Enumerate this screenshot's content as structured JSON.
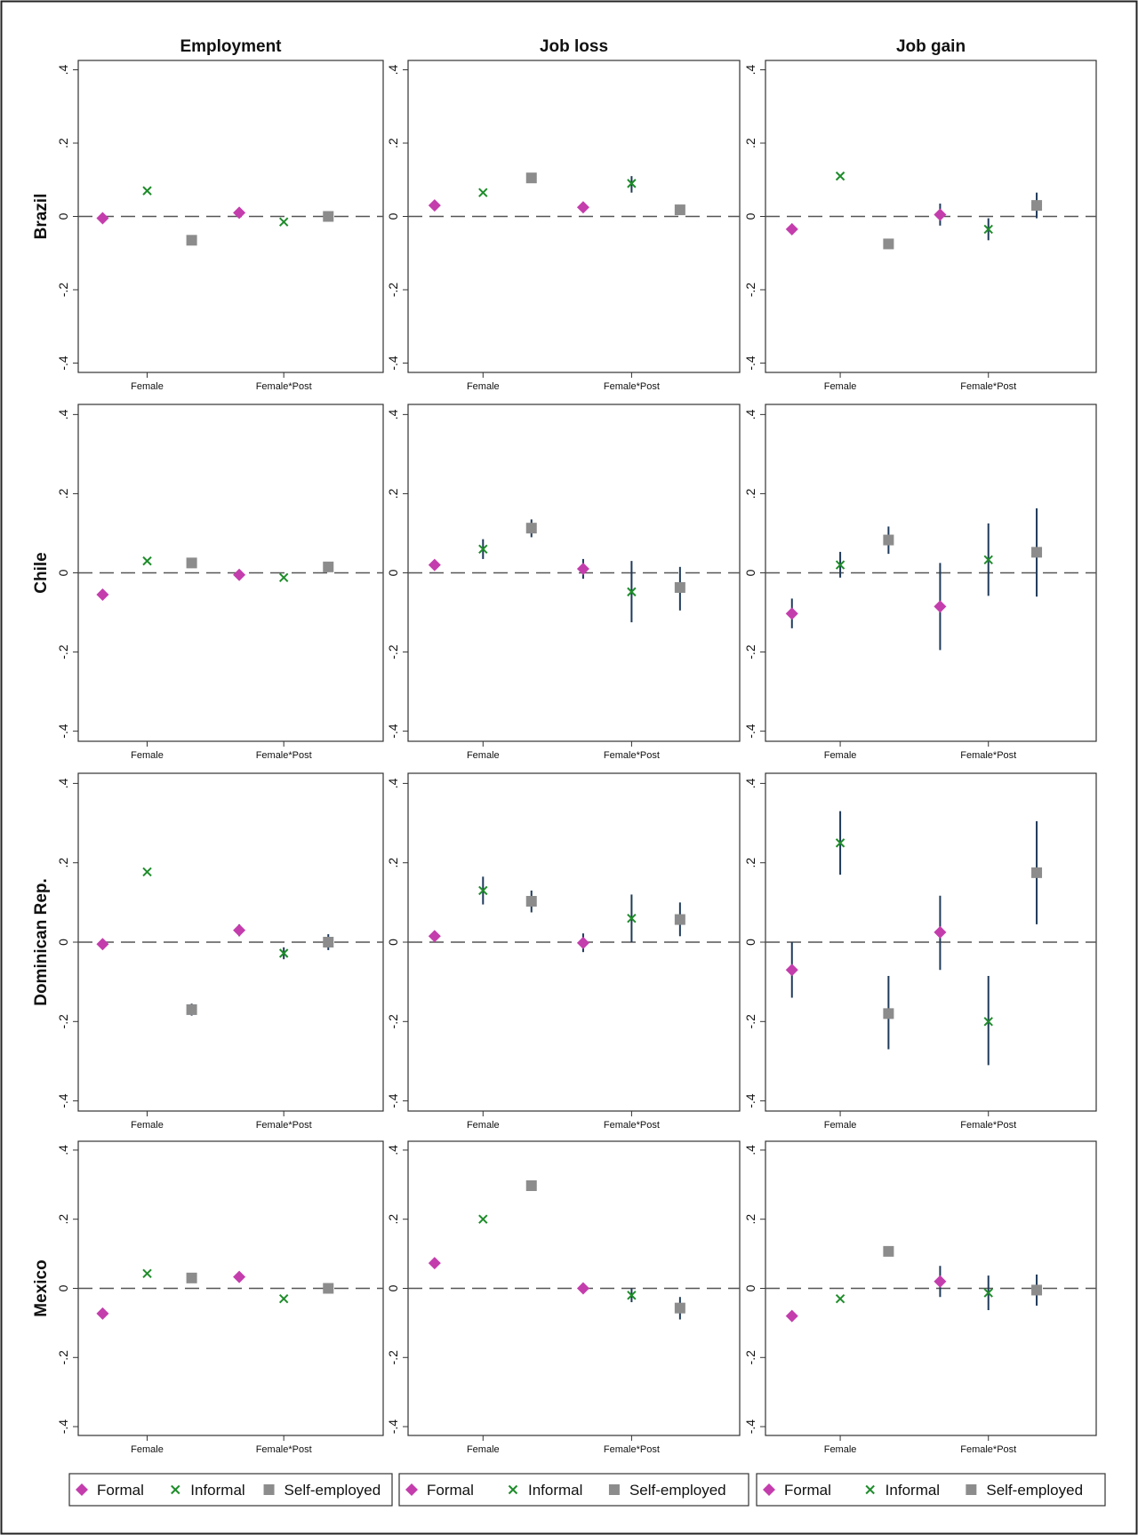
{
  "chart_data": {
    "type": "scatter",
    "subtype": "coefficient plot with confidence intervals",
    "columns": [
      "Employment",
      "Job loss",
      "Job gain"
    ],
    "rows": [
      "Brazil",
      "Chile",
      "Dominican Rep.",
      "Mexico"
    ],
    "x_categories": [
      "Female",
      "Female*Post"
    ],
    "y_ticks": [
      ".4",
      ".2",
      "0",
      "-.2",
      "-.4"
    ],
    "ylim": [
      -0.4,
      0.4
    ],
    "reference_line": 0,
    "legend": {
      "placement": "bottom",
      "items": [
        {
          "label": "Formal",
          "marker": "diamond",
          "color": "#c43dad"
        },
        {
          "label": "Informal",
          "marker": "x",
          "color": "#1e8c2a"
        },
        {
          "label": "Self-employed",
          "marker": "square",
          "color": "#8c8c8c"
        }
      ]
    },
    "ci_color": "#1f3a5a",
    "panels": [
      {
        "row": "Brazil",
        "column": "Employment",
        "series": [
          {
            "name": "Formal",
            "values": [
              {
                "x": "Female",
                "y": -0.005,
                "lo": -0.01,
                "hi": 0.0
              },
              {
                "x": "Female*Post",
                "y": 0.01,
                "lo": 0.0,
                "hi": 0.02
              }
            ]
          },
          {
            "name": "Informal",
            "values": [
              {
                "x": "Female",
                "y": 0.07,
                "lo": 0.065,
                "hi": 0.075
              },
              {
                "x": "Female*Post",
                "y": -0.015,
                "lo": -0.02,
                "hi": -0.01
              }
            ]
          },
          {
            "name": "Self-employed",
            "values": [
              {
                "x": "Female",
                "y": -0.065,
                "lo": -0.07,
                "hi": -0.06
              },
              {
                "x": "Female*Post",
                "y": 0.0,
                "lo": -0.01,
                "hi": 0.01
              }
            ]
          }
        ]
      },
      {
        "row": "Brazil",
        "column": "Job loss",
        "series": [
          {
            "name": "Formal",
            "values": [
              {
                "x": "Female",
                "y": 0.03,
                "lo": 0.025,
                "hi": 0.035
              },
              {
                "x": "Female*Post",
                "y": 0.025,
                "lo": 0.015,
                "hi": 0.035
              }
            ]
          },
          {
            "name": "Informal",
            "values": [
              {
                "x": "Female",
                "y": 0.065,
                "lo": 0.055,
                "hi": 0.075
              },
              {
                "x": "Female*Post",
                "y": 0.09,
                "lo": 0.065,
                "hi": 0.11
              }
            ]
          },
          {
            "name": "Self-employed",
            "values": [
              {
                "x": "Female",
                "y": 0.105,
                "lo": 0.1,
                "hi": 0.11
              },
              {
                "x": "Female*Post",
                "y": 0.018,
                "lo": 0.005,
                "hi": 0.03
              }
            ]
          }
        ]
      },
      {
        "row": "Brazil",
        "column": "Job gain",
        "series": [
          {
            "name": "Formal",
            "values": [
              {
                "x": "Female",
                "y": -0.035,
                "lo": -0.04,
                "hi": -0.03
              },
              {
                "x": "Female*Post",
                "y": 0.005,
                "lo": -0.025,
                "hi": 0.035
              }
            ]
          },
          {
            "name": "Informal",
            "values": [
              {
                "x": "Female",
                "y": 0.11,
                "lo": 0.1,
                "hi": 0.12
              },
              {
                "x": "Female*Post",
                "y": -0.035,
                "lo": -0.065,
                "hi": -0.005
              }
            ]
          },
          {
            "name": "Self-employed",
            "values": [
              {
                "x": "Female",
                "y": -0.075,
                "lo": -0.08,
                "hi": -0.07
              },
              {
                "x": "Female*Post",
                "y": 0.03,
                "lo": -0.005,
                "hi": 0.065
              }
            ]
          }
        ]
      },
      {
        "row": "Chile",
        "column": "Employment",
        "series": [
          {
            "name": "Formal",
            "values": [
              {
                "x": "Female",
                "y": -0.055,
                "lo": -0.06,
                "hi": -0.05
              },
              {
                "x": "Female*Post",
                "y": -0.005,
                "lo": -0.01,
                "hi": 0.0
              }
            ]
          },
          {
            "name": "Informal",
            "values": [
              {
                "x": "Female",
                "y": 0.03,
                "lo": 0.025,
                "hi": 0.035
              },
              {
                "x": "Female*Post",
                "y": -0.012,
                "lo": -0.017,
                "hi": -0.007
              }
            ]
          },
          {
            "name": "Self-employed",
            "values": [
              {
                "x": "Female",
                "y": 0.025,
                "lo": 0.02,
                "hi": 0.03
              },
              {
                "x": "Female*Post",
                "y": 0.015,
                "lo": 0.005,
                "hi": 0.025
              }
            ]
          }
        ]
      },
      {
        "row": "Chile",
        "column": "Job loss",
        "series": [
          {
            "name": "Formal",
            "values": [
              {
                "x": "Female",
                "y": 0.02,
                "lo": 0.01,
                "hi": 0.03
              },
              {
                "x": "Female*Post",
                "y": 0.01,
                "lo": -0.015,
                "hi": 0.035
              }
            ]
          },
          {
            "name": "Informal",
            "values": [
              {
                "x": "Female",
                "y": 0.06,
                "lo": 0.035,
                "hi": 0.085
              },
              {
                "x": "Female*Post",
                "y": -0.048,
                "lo": -0.125,
                "hi": 0.03
              }
            ]
          },
          {
            "name": "Self-employed",
            "values": [
              {
                "x": "Female",
                "y": 0.113,
                "lo": 0.09,
                "hi": 0.135
              },
              {
                "x": "Female*Post",
                "y": -0.037,
                "lo": -0.095,
                "hi": 0.015
              }
            ]
          }
        ]
      },
      {
        "row": "Chile",
        "column": "Job gain",
        "series": [
          {
            "name": "Formal",
            "values": [
              {
                "x": "Female",
                "y": -0.103,
                "lo": -0.14,
                "hi": -0.065
              },
              {
                "x": "Female*Post",
                "y": -0.085,
                "lo": -0.195,
                "hi": 0.025
              }
            ]
          },
          {
            "name": "Informal",
            "values": [
              {
                "x": "Female",
                "y": 0.02,
                "lo": -0.012,
                "hi": 0.053
              },
              {
                "x": "Female*Post",
                "y": 0.033,
                "lo": -0.058,
                "hi": 0.125
              }
            ]
          },
          {
            "name": "Self-employed",
            "values": [
              {
                "x": "Female",
                "y": 0.083,
                "lo": 0.048,
                "hi": 0.117
              },
              {
                "x": "Female*Post",
                "y": 0.052,
                "lo": -0.06,
                "hi": 0.163
              }
            ]
          }
        ]
      },
      {
        "row": "Dominican Rep.",
        "column": "Employment",
        "series": [
          {
            "name": "Formal",
            "values": [
              {
                "x": "Female",
                "y": -0.005,
                "lo": -0.015,
                "hi": 0.005
              },
              {
                "x": "Female*Post",
                "y": 0.03,
                "lo": 0.015,
                "hi": 0.045
              }
            ]
          },
          {
            "name": "Informal",
            "values": [
              {
                "x": "Female",
                "y": 0.177,
                "lo": 0.167,
                "hi": 0.187
              },
              {
                "x": "Female*Post",
                "y": -0.028,
                "lo": -0.043,
                "hi": -0.013
              }
            ]
          },
          {
            "name": "Self-employed",
            "values": [
              {
                "x": "Female",
                "y": -0.17,
                "lo": -0.185,
                "hi": -0.155
              },
              {
                "x": "Female*Post",
                "y": 0.0,
                "lo": -0.02,
                "hi": 0.02
              }
            ]
          }
        ]
      },
      {
        "row": "Dominican Rep.",
        "column": "Job loss",
        "series": [
          {
            "name": "Formal",
            "values": [
              {
                "x": "Female",
                "y": 0.015,
                "lo": 0.005,
                "hi": 0.025
              },
              {
                "x": "Female*Post",
                "y": -0.002,
                "lo": -0.025,
                "hi": 0.022
              }
            ]
          },
          {
            "name": "Informal",
            "values": [
              {
                "x": "Female",
                "y": 0.13,
                "lo": 0.095,
                "hi": 0.165
              },
              {
                "x": "Female*Post",
                "y": 0.06,
                "lo": 0.0,
                "hi": 0.12
              }
            ]
          },
          {
            "name": "Self-employed",
            "values": [
              {
                "x": "Female",
                "y": 0.103,
                "lo": 0.075,
                "hi": 0.13
              },
              {
                "x": "Female*Post",
                "y": 0.057,
                "lo": 0.015,
                "hi": 0.1
              }
            ]
          }
        ]
      },
      {
        "row": "Dominican Rep.",
        "column": "Job gain",
        "series": [
          {
            "name": "Formal",
            "values": [
              {
                "x": "Female",
                "y": -0.07,
                "lo": -0.14,
                "hi": 0.0
              },
              {
                "x": "Female*Post",
                "y": 0.025,
                "lo": -0.07,
                "hi": 0.117
              }
            ]
          },
          {
            "name": "Informal",
            "values": [
              {
                "x": "Female",
                "y": 0.25,
                "lo": 0.17,
                "hi": 0.33
              },
              {
                "x": "Female*Post",
                "y": -0.2,
                "lo": -0.31,
                "hi": -0.085
              }
            ]
          },
          {
            "name": "Self-employed",
            "values": [
              {
                "x": "Female",
                "y": -0.18,
                "lo": -0.27,
                "hi": -0.085
              },
              {
                "x": "Female*Post",
                "y": 0.175,
                "lo": 0.045,
                "hi": 0.305
              }
            ]
          }
        ]
      },
      {
        "row": "Mexico",
        "column": "Employment",
        "series": [
          {
            "name": "Formal",
            "values": [
              {
                "x": "Female",
                "y": -0.073,
                "lo": -0.078,
                "hi": -0.068
              },
              {
                "x": "Female*Post",
                "y": 0.033,
                "lo": 0.028,
                "hi": 0.038
              }
            ]
          },
          {
            "name": "Informal",
            "values": [
              {
                "x": "Female",
                "y": 0.043,
                "lo": 0.038,
                "hi": 0.048
              },
              {
                "x": "Female*Post",
                "y": -0.03,
                "lo": -0.035,
                "hi": -0.025
              }
            ]
          },
          {
            "name": "Self-employed",
            "values": [
              {
                "x": "Female",
                "y": 0.03,
                "lo": 0.025,
                "hi": 0.035
              },
              {
                "x": "Female*Post",
                "y": 0.0,
                "lo": -0.005,
                "hi": 0.005
              }
            ]
          }
        ]
      },
      {
        "row": "Mexico",
        "column": "Job loss",
        "series": [
          {
            "name": "Formal",
            "values": [
              {
                "x": "Female",
                "y": 0.073,
                "lo": 0.068,
                "hi": 0.078
              },
              {
                "x": "Female*Post",
                "y": 0.0,
                "lo": -0.01,
                "hi": 0.01
              }
            ]
          },
          {
            "name": "Informal",
            "values": [
              {
                "x": "Female",
                "y": 0.2,
                "lo": 0.19,
                "hi": 0.21
              },
              {
                "x": "Female*Post",
                "y": -0.02,
                "lo": -0.04,
                "hi": 0.0
              }
            ]
          },
          {
            "name": "Self-employed",
            "values": [
              {
                "x": "Female",
                "y": 0.297,
                "lo": 0.29,
                "hi": 0.305
              },
              {
                "x": "Female*Post",
                "y": -0.057,
                "lo": -0.09,
                "hi": -0.025
              }
            ]
          }
        ]
      },
      {
        "row": "Mexico",
        "column": "Job gain",
        "series": [
          {
            "name": "Formal",
            "values": [
              {
                "x": "Female",
                "y": -0.08,
                "lo": -0.085,
                "hi": -0.075
              },
              {
                "x": "Female*Post",
                "y": 0.02,
                "lo": -0.025,
                "hi": 0.065
              }
            ]
          },
          {
            "name": "Informal",
            "values": [
              {
                "x": "Female",
                "y": -0.03,
                "lo": -0.04,
                "hi": -0.02
              },
              {
                "x": "Female*Post",
                "y": -0.013,
                "lo": -0.063,
                "hi": 0.037
              }
            ]
          },
          {
            "name": "Self-employed",
            "values": [
              {
                "x": "Female",
                "y": 0.107,
                "lo": 0.093,
                "hi": 0.12
              },
              {
                "x": "Female*Post",
                "y": -0.005,
                "lo": -0.05,
                "hi": 0.04
              }
            ]
          }
        ]
      }
    ]
  }
}
